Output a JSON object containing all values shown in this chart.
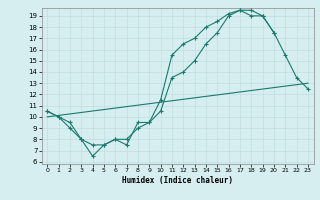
{
  "xlabel": "Humidex (Indice chaleur)",
  "bg_color": "#d6eef0",
  "grid_color": "#c0dde0",
  "line_color": "#1a7a6e",
  "line1_x": [
    0,
    1,
    2,
    3,
    4,
    5,
    6,
    7,
    8,
    9,
    10,
    11,
    12,
    13,
    14,
    15,
    16,
    17,
    18,
    19,
    20,
    21,
    22,
    23
  ],
  "line1_y": [
    10.5,
    10.0,
    9.5,
    8.0,
    7.5,
    7.5,
    8.0,
    7.5,
    9.5,
    9.5,
    11.5,
    15.5,
    16.5,
    17.0,
    18.0,
    18.5,
    19.2,
    19.5,
    19.0,
    19.0,
    17.5,
    15.5,
    13.5,
    12.5
  ],
  "line2_x": [
    0,
    1,
    2,
    3,
    4,
    5,
    6,
    7,
    8,
    9,
    10,
    11,
    12,
    13,
    14,
    15,
    16,
    17,
    18,
    19,
    20
  ],
  "line2_y": [
    10.5,
    10.0,
    9.0,
    8.0,
    6.5,
    7.5,
    8.0,
    8.0,
    9.0,
    9.5,
    10.5,
    13.5,
    14.0,
    15.0,
    16.5,
    17.5,
    19.0,
    19.5,
    19.5,
    19.0,
    17.5
  ],
  "line3_x": [
    0,
    23
  ],
  "line3_y": [
    10.0,
    13.0
  ],
  "ylim": [
    6,
    19.5
  ],
  "xlim": [
    -0.5,
    23.5
  ],
  "yticks": [
    6,
    7,
    8,
    9,
    10,
    11,
    12,
    13,
    14,
    15,
    16,
    17,
    18,
    19
  ],
  "xticks": [
    0,
    1,
    2,
    3,
    4,
    5,
    6,
    7,
    8,
    9,
    10,
    11,
    12,
    13,
    14,
    15,
    16,
    17,
    18,
    19,
    20,
    21,
    22,
    23
  ]
}
